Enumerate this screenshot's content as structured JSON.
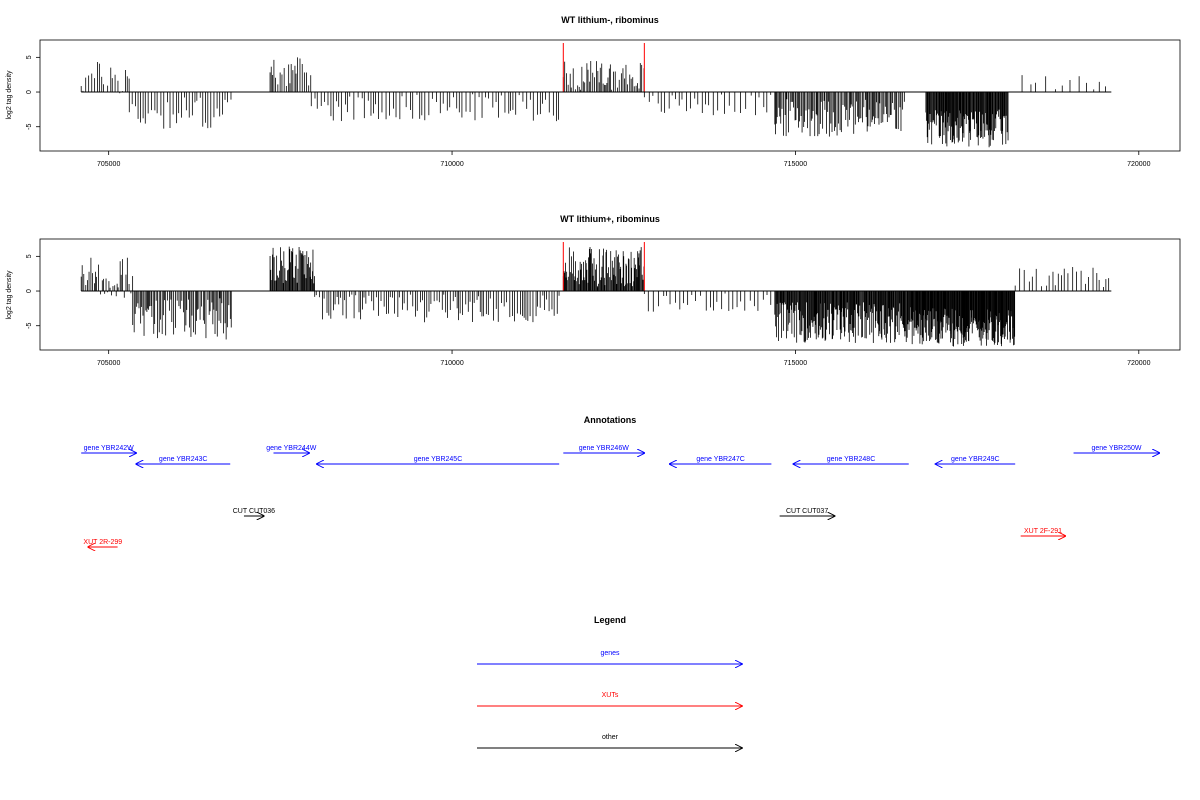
{
  "colors": {
    "gene": "#0000ff",
    "xut": "#ff0000",
    "other": "#000000",
    "marker": "#ff0000",
    "signal": "#000000"
  },
  "chart_data": [
    {
      "type": "bar",
      "title": "WT lithium-, ribominus",
      "ylabel": "log2 tag density",
      "xlim": [
        704000,
        720600
      ],
      "ylim": [
        -8.5,
        7.5
      ],
      "xticks": [
        705000,
        710000,
        715000,
        720000
      ],
      "xtick_labels": [
        "705000",
        "710000",
        "715000",
        "720000"
      ],
      "yticks": [
        5,
        0,
        -5
      ],
      "ytick_labels": [
        "5",
        "0",
        "-5"
      ],
      "grid": false,
      "baseline": {
        "from": 704600,
        "to": 719600
      },
      "markers": [
        711620,
        712800
      ],
      "segments": [
        {
          "from": 704600,
          "to": 705300,
          "min": -0.5,
          "max": 4.5,
          "step": 35
        },
        {
          "from": 705300,
          "to": 706800,
          "min": -5.5,
          "max": -0.5,
          "step": 40
        },
        {
          "from": 707350,
          "to": 707950,
          "min": 0.8,
          "max": 5.0,
          "step": 25
        },
        {
          "from": 707950,
          "to": 711560,
          "min": -4.2,
          "max": -0.3,
          "step": 45
        },
        {
          "from": 711620,
          "to": 712800,
          "min": 0.3,
          "max": 4.5,
          "step": 25
        },
        {
          "from": 712800,
          "to": 714700,
          "min": -3.5,
          "max": -0.3,
          "step": 60
        },
        {
          "from": 714700,
          "to": 716600,
          "min": -6.5,
          "max": -1.0,
          "step": 18
        },
        {
          "from": 716900,
          "to": 718100,
          "min": -8.0,
          "max": -2.5,
          "step": 10
        },
        {
          "from": 718300,
          "to": 719600,
          "min": 0.2,
          "max": 2.5,
          "step": 110
        }
      ]
    },
    {
      "type": "bar",
      "title": "WT lithium+, ribominus",
      "ylabel": "log2 tag density",
      "xlim": [
        704000,
        720600
      ],
      "ylim": [
        -8.5,
        7.5
      ],
      "xticks": [
        705000,
        710000,
        715000,
        720000
      ],
      "xtick_labels": [
        "705000",
        "710000",
        "715000",
        "720000"
      ],
      "yticks": [
        5,
        0,
        -5
      ],
      "ytick_labels": [
        "5",
        "0",
        "-5"
      ],
      "grid": false,
      "baseline": {
        "from": 704600,
        "to": 719600
      },
      "markers": [
        711620,
        712800
      ],
      "segments": [
        {
          "from": 704600,
          "to": 705350,
          "min": -1.0,
          "max": 5.0,
          "step": 22
        },
        {
          "from": 705350,
          "to": 706800,
          "min": -7.0,
          "max": -1.0,
          "step": 20
        },
        {
          "from": 707350,
          "to": 708000,
          "min": 1.0,
          "max": 6.5,
          "step": 12
        },
        {
          "from": 708000,
          "to": 711560,
          "min": -4.5,
          "max": -0.5,
          "step": 35
        },
        {
          "from": 711620,
          "to": 712800,
          "min": 0.5,
          "max": 6.5,
          "step": 12
        },
        {
          "from": 712800,
          "to": 714700,
          "min": -3.0,
          "max": -0.3,
          "step": 60
        },
        {
          "from": 714700,
          "to": 716700,
          "min": -7.5,
          "max": -1.5,
          "step": 10
        },
        {
          "from": 716700,
          "to": 718200,
          "min": -8.0,
          "max": -2.5,
          "step": 8
        },
        {
          "from": 718200,
          "to": 719600,
          "min": 0.5,
          "max": 3.5,
          "step": 55
        }
      ]
    }
  ],
  "annotations": {
    "title": "Annotations",
    "items": [
      {
        "label": "gene YBR242W",
        "kind": "gene",
        "dir": "right",
        "from": 704600,
        "to": 705400,
        "row": 0
      },
      {
        "label": "gene YBR243C",
        "kind": "gene",
        "dir": "left",
        "from": 705400,
        "to": 706770,
        "row": 1
      },
      {
        "label": "gene YBR244W",
        "kind": "gene",
        "dir": "right",
        "from": 707400,
        "to": 707920,
        "row": 0
      },
      {
        "label": "gene YBR245C",
        "kind": "gene",
        "dir": "left",
        "from": 708030,
        "to": 711560,
        "row": 1
      },
      {
        "label": "gene YBR246W",
        "kind": "gene",
        "dir": "right",
        "from": 711620,
        "to": 712800,
        "row": 0
      },
      {
        "label": "gene YBR247C",
        "kind": "gene",
        "dir": "left",
        "from": 713170,
        "to": 714650,
        "row": 1
      },
      {
        "label": "gene YBR248C",
        "kind": "gene",
        "dir": "left",
        "from": 714970,
        "to": 716650,
        "row": 1
      },
      {
        "label": "gene YBR249C",
        "kind": "gene",
        "dir": "left",
        "from": 717040,
        "to": 718200,
        "row": 1
      },
      {
        "label": "gene YBR250W",
        "kind": "gene",
        "dir": "right",
        "from": 719050,
        "to": 720300,
        "row": 0
      },
      {
        "label": "CUT CUT036",
        "kind": "other",
        "dir": "right",
        "from": 706970,
        "to": 707260,
        "row": 3
      },
      {
        "label": "CUT CUT037",
        "kind": "other",
        "dir": "right",
        "from": 714770,
        "to": 715570,
        "row": 3
      },
      {
        "label": "XUT 2R-299",
        "kind": "xut",
        "dir": "left",
        "from": 704700,
        "to": 705130,
        "row": 5
      },
      {
        "label": "XUT 2F-291",
        "kind": "xut",
        "dir": "right",
        "from": 718280,
        "to": 718930,
        "row": 4
      }
    ]
  },
  "legend": {
    "title": "Legend",
    "items": [
      {
        "label": "genes",
        "kind": "gene"
      },
      {
        "label": "XUTs",
        "kind": "xut"
      },
      {
        "label": "other",
        "kind": "other"
      }
    ]
  }
}
